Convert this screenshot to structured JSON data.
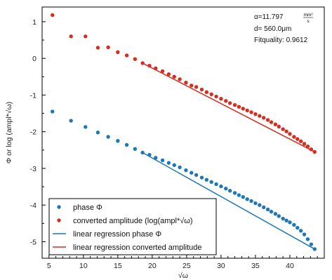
{
  "chart_data": {
    "type": "scatter",
    "xlabel": "√ω",
    "ylabel": "Φ or log (ampl*√ω)",
    "xlim": [
      4,
      45
    ],
    "ylim": [
      -5.45,
      1.4
    ],
    "xticks": [
      5,
      10,
      15,
      20,
      25,
      30,
      35,
      40
    ],
    "xtick_labels": [
      "5",
      "10",
      "15",
      "20",
      "25",
      "30",
      "35",
      "40"
    ],
    "yticks": [
      1,
      0,
      -1,
      -2,
      -3,
      -4,
      -5
    ],
    "ytick_labels": [
      "1",
      "0",
      "-1",
      "-2",
      "-3",
      "-4",
      "-5"
    ],
    "grid": false,
    "legend_position": "bottom-left",
    "annotation": {
      "alpha_prefix": "α=11.797",
      "alpha_unit_num": "mm²",
      "alpha_unit_den": "s",
      "thickness": "d= 560.0μm",
      "fit_quality": "Fitquality: 0.9612"
    },
    "series": [
      {
        "name": "phase Φ",
        "kind": "scatter",
        "color": "#1f77b4",
        "x": [
          5.5,
          8.2,
          10.3,
          12.1,
          13.6,
          15.0,
          16.3,
          17.5,
          18.6,
          19.6,
          20.5,
          21.5,
          22.4,
          23.2,
          24.0,
          24.9,
          25.7,
          26.4,
          27.2,
          27.9,
          28.6,
          29.3,
          30.0,
          30.7,
          31.3,
          32.0,
          32.6,
          33.2,
          33.8,
          34.4,
          35.0,
          35.6,
          36.2,
          36.8,
          37.3,
          37.9,
          38.4,
          39.0,
          39.5,
          40.0,
          40.6,
          41.1,
          41.6,
          42.1,
          42.6,
          43.1,
          43.6
        ],
        "y": [
          -1.45,
          -1.7,
          -1.87,
          -2.02,
          -2.14,
          -2.25,
          -2.36,
          -2.47,
          -2.57,
          -2.63,
          -2.71,
          -2.78,
          -2.85,
          -2.91,
          -2.97,
          -3.05,
          -3.12,
          -3.18,
          -3.25,
          -3.31,
          -3.37,
          -3.43,
          -3.49,
          -3.55,
          -3.61,
          -3.67,
          -3.73,
          -3.78,
          -3.84,
          -3.89,
          -3.95,
          -4.0,
          -4.06,
          -4.12,
          -4.18,
          -4.24,
          -4.3,
          -4.37,
          -4.42,
          -4.47,
          -4.54,
          -4.62,
          -4.7,
          -4.8,
          -4.93,
          -5.07,
          -5.2
        ]
      },
      {
        "name": "converted amplitude (log(ampl*√ω)",
        "kind": "scatter",
        "color": "#d62d20",
        "x": [
          5.5,
          8.2,
          10.3,
          12.1,
          13.6,
          15.0,
          16.3,
          17.5,
          18.6,
          19.6,
          20.5,
          21.5,
          22.4,
          23.2,
          24.0,
          24.9,
          25.7,
          26.4,
          27.2,
          27.9,
          28.6,
          29.3,
          30.0,
          30.7,
          31.3,
          32.0,
          32.6,
          33.2,
          33.8,
          34.4,
          35.0,
          35.6,
          36.2,
          36.8,
          37.3,
          37.9,
          38.4,
          39.0,
          39.5,
          40.0,
          40.6,
          41.1,
          41.6,
          42.1,
          42.6,
          43.1,
          43.6
        ],
        "y": [
          1.18,
          0.6,
          0.6,
          0.29,
          0.3,
          0.17,
          0.08,
          -0.02,
          -0.13,
          -0.2,
          -0.27,
          -0.35,
          -0.43,
          -0.5,
          -0.57,
          -0.66,
          -0.74,
          -0.78,
          -0.85,
          -0.92,
          -0.98,
          -1.04,
          -1.1,
          -1.16,
          -1.22,
          -1.27,
          -1.32,
          -1.37,
          -1.42,
          -1.47,
          -1.52,
          -1.57,
          -1.62,
          -1.68,
          -1.74,
          -1.8,
          -1.86,
          -1.93,
          -1.99,
          -2.06,
          -2.14,
          -2.2,
          -2.26,
          -2.33,
          -2.4,
          -2.48,
          -2.55
        ]
      },
      {
        "name": "linear regression phase Φ",
        "kind": "line",
        "color": "#1f77b4",
        "x": [
          18.6,
          43.6
        ],
        "y": [
          -2.57,
          -5.2
        ]
      },
      {
        "name": "linear regression converted amplitude",
        "kind": "line",
        "color": "#d62d20",
        "x": [
          18.6,
          43.6
        ],
        "y": [
          -0.13,
          -2.55
        ]
      }
    ]
  }
}
